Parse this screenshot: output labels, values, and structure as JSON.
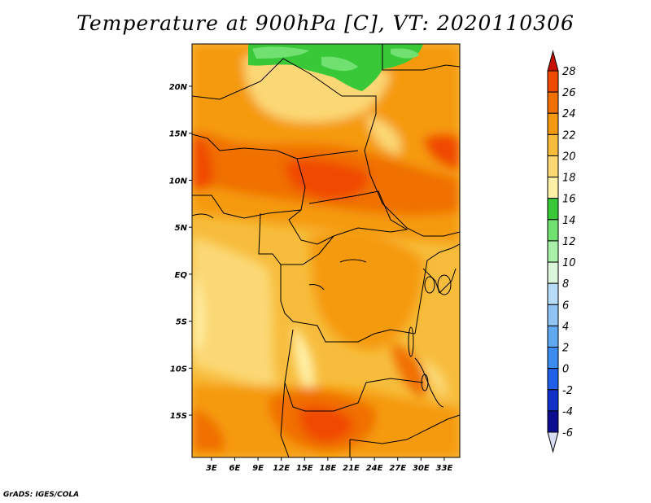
{
  "title": "Temperature at 900hPa [C], VT: 2020110306",
  "credit": "GrADS: IGES/COLA",
  "axes": {
    "lat_labels": [
      "20N",
      "15N",
      "10N",
      "5N",
      "EQ",
      "5S",
      "10S",
      "15S"
    ],
    "lat_values": [
      20,
      15,
      10,
      5,
      0,
      -5,
      -10,
      -15
    ],
    "lon_labels": [
      "3E",
      "6E",
      "9E",
      "12E",
      "15E",
      "18E",
      "21E",
      "24E",
      "27E",
      "30E",
      "33E"
    ],
    "lon_values": [
      3,
      6,
      9,
      12,
      15,
      18,
      21,
      24,
      27,
      30,
      33
    ],
    "lon_range": [
      0.5,
      35
    ],
    "lat_range": [
      -19.5,
      24.5
    ]
  },
  "colorbar": {
    "levels": [
      "28",
      "26",
      "24",
      "22",
      "20",
      "18",
      "16",
      "14",
      "12",
      "10",
      "8",
      "6",
      "4",
      "2",
      "0",
      "-2",
      "-4",
      "-6"
    ],
    "colors": [
      "#f02000",
      "#f04a00",
      "#f07000",
      "#f59a10",
      "#f7bc3c",
      "#fbd874",
      "#fff0a8",
      "#38c838",
      "#70e070",
      "#a8f0a8",
      "#dcf6dc",
      "#b8dcf8",
      "#90c4f4",
      "#60a8f0",
      "#3c8cf0",
      "#2060e8",
      "#1030c8",
      "#0c0c90",
      "#101060"
    ],
    "top_color": "#c81000",
    "bottom_color": "#d8dcf0"
  }
}
